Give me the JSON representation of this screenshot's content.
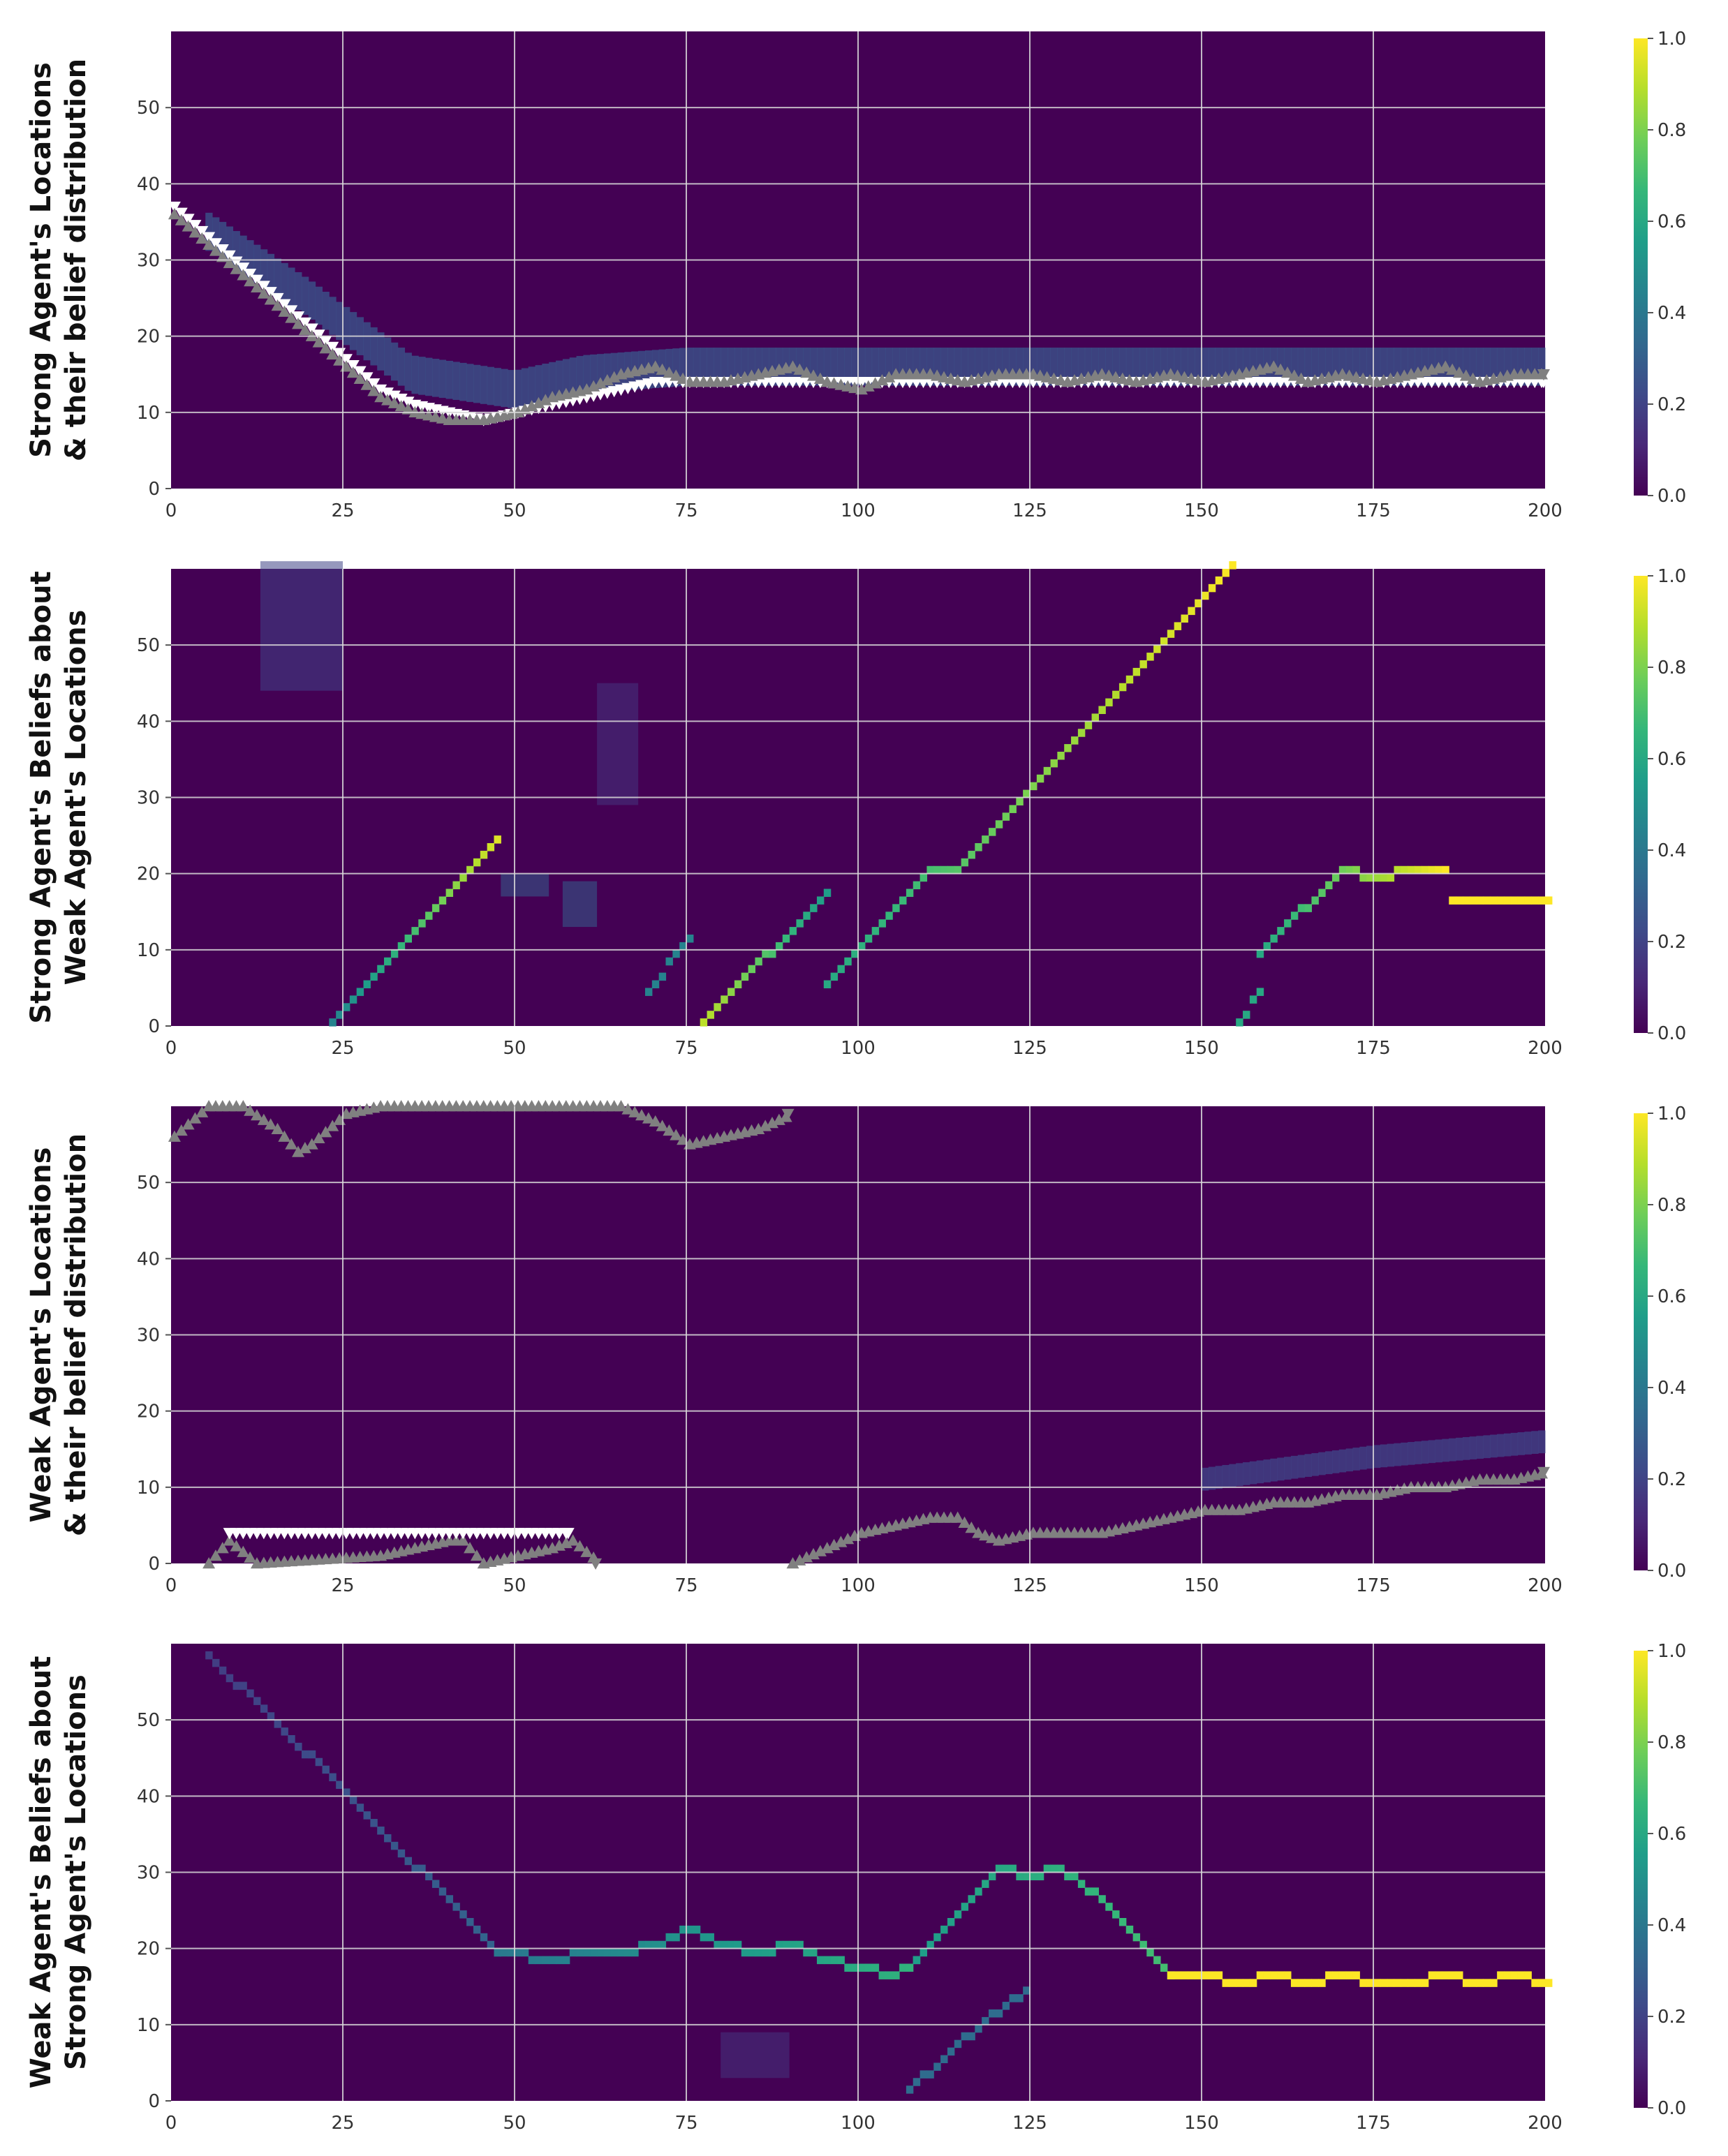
{
  "colormap": {
    "name": "viridis",
    "stops": [
      "#440154",
      "#482878",
      "#3e4a89",
      "#31688e",
      "#26828e",
      "#1f9e89",
      "#35b779",
      "#6ece58",
      "#b5de2b",
      "#fde725"
    ]
  },
  "marker_colors": {
    "strong": "#ffffff",
    "weak": "#808080"
  },
  "chart_data": [
    {
      "type": "heatmap",
      "ylabel_lines": [
        "Strong Agent's Locations",
        "& their belief distribution"
      ],
      "xlim": [
        0,
        200
      ],
      "ylim": [
        0,
        60
      ],
      "xticks": [
        "0",
        "25",
        "50",
        "75",
        "100",
        "125",
        "150",
        "175",
        "200"
      ],
      "yticks": [
        "0",
        "10",
        "20",
        "30",
        "40",
        "50"
      ],
      "colorbar": {
        "range": [
          0,
          1
        ],
        "ticks": [
          "0.0",
          "0.2",
          "0.4",
          "0.6",
          "0.8",
          "1.0"
        ]
      },
      "grid": true,
      "belief_band": {
        "t": [
          5,
          20,
          35,
          50,
          60,
          75,
          100,
          125,
          150,
          175,
          200
        ],
        "y": [
          34,
          25,
          15,
          13,
          15,
          16,
          16,
          16,
          16,
          16,
          16
        ],
        "width": 5,
        "intensity": 0.25
      },
      "series": [
        {
          "role": "strong",
          "marker": "triangle-down",
          "t": [
            0,
            5,
            10,
            15,
            20,
            25,
            30,
            35,
            40,
            45,
            50,
            55,
            60,
            65,
            70,
            75,
            80,
            85,
            90,
            95,
            100,
            105,
            110,
            115,
            120,
            125,
            130,
            135,
            140,
            145,
            150,
            155,
            160,
            165,
            170,
            175,
            180,
            185,
            190,
            195,
            200
          ],
          "y": [
            37,
            33,
            29,
            25,
            21,
            17,
            13,
            11,
            10,
            9,
            10,
            11,
            12,
            13,
            14,
            14,
            14,
            14,
            14,
            14,
            14,
            14,
            14,
            14,
            14,
            14,
            14,
            14,
            14,
            14,
            14,
            14,
            14,
            14,
            14,
            14,
            14,
            14,
            14,
            14,
            14
          ]
        },
        {
          "role": "weak",
          "marker": "triangle-up",
          "t": [
            0,
            5,
            10,
            15,
            20,
            25,
            30,
            35,
            40,
            45,
            50,
            55,
            60,
            65,
            70,
            75,
            80,
            85,
            90,
            95,
            100,
            105,
            110,
            115,
            120,
            125,
            130,
            135,
            140,
            145,
            150,
            155,
            160,
            165,
            170,
            175,
            180,
            185,
            190,
            195,
            200
          ],
          "y": [
            36,
            32,
            28,
            24,
            20,
            16,
            12,
            10,
            9,
            9,
            10,
            12,
            13,
            15,
            16,
            14,
            14,
            15,
            16,
            14,
            13,
            15,
            15,
            14,
            15,
            15,
            14,
            15,
            14,
            15,
            14,
            15,
            16,
            14,
            15,
            14,
            15,
            16,
            14,
            15,
            15
          ]
        }
      ]
    },
    {
      "type": "heatmap",
      "ylabel_lines": [
        "Strong Agent's Beliefs about",
        "Weak Agent's Locations"
      ],
      "xlim": [
        0,
        200
      ],
      "ylim": [
        0,
        60
      ],
      "xticks": [
        "0",
        "25",
        "50",
        "75",
        "100",
        "125",
        "150",
        "175",
        "200"
      ],
      "yticks": [
        "0",
        "10",
        "20",
        "30",
        "40",
        "50"
      ],
      "colorbar": {
        "range": [
          0,
          1
        ],
        "ticks": [
          "0.0",
          "0.2",
          "0.4",
          "0.6",
          "0.8",
          "1.0"
        ]
      },
      "grid": true,
      "belief_segments": [
        {
          "points": [
            [
              23,
              0
            ],
            [
              47,
              24
            ]
          ],
          "intensity": [
            0.45,
            0.95
          ]
        },
        {
          "points": [
            [
              69,
              4
            ],
            [
              75,
              11
            ]
          ],
          "intensity": [
            0.45,
            0.45
          ]
        },
        {
          "points": [
            [
              77,
              0
            ],
            [
              95,
              17
            ]
          ],
          "intensity": [
            0.9,
            0.55
          ]
        },
        {
          "points": [
            [
              95,
              5
            ],
            [
              110,
              20
            ],
            [
              114,
              20
            ],
            [
              154,
              60
            ]
          ],
          "intensity": [
            0.6,
            1.0
          ]
        },
        {
          "points": [
            [
              155,
              0
            ],
            [
              158,
              4
            ]
          ],
          "intensity": [
            0.6,
            0.6
          ]
        },
        {
          "points": [
            [
              158,
              9
            ],
            [
              170,
              20
            ],
            [
              175,
              19
            ],
            [
              180,
              20
            ],
            [
              185,
              20
            ]
          ],
          "intensity": [
            0.6,
            1.0
          ]
        },
        {
          "points": [
            [
              186,
              16
            ],
            [
              200,
              16
            ]
          ],
          "intensity": [
            1.0,
            1.0
          ]
        }
      ],
      "faint_regions": [
        {
          "points": [
            [
              13,
              45
            ],
            [
              25,
              60
            ]
          ],
          "intensity": 0.2
        },
        {
          "points": [
            [
              48,
              18
            ],
            [
              55,
              19
            ]
          ],
          "intensity": 0.3
        },
        {
          "points": [
            [
              57,
              14
            ],
            [
              62,
              18
            ]
          ],
          "intensity": 0.3
        },
        {
          "points": [
            [
              62,
              30
            ],
            [
              68,
              44
            ]
          ],
          "intensity": 0.15
        }
      ]
    },
    {
      "type": "heatmap",
      "ylabel_lines": [
        "Weak Agent's Locations",
        "& their belief distribution"
      ],
      "xlim": [
        0,
        200
      ],
      "ylim": [
        0,
        60
      ],
      "xticks": [
        "0",
        "25",
        "50",
        "75",
        "100",
        "125",
        "150",
        "175",
        "200"
      ],
      "yticks": [
        "0",
        "10",
        "20",
        "30",
        "40",
        "50"
      ],
      "colorbar": {
        "range": [
          0,
          1
        ],
        "ticks": [
          "0.0",
          "0.2",
          "0.4",
          "0.6",
          "0.8",
          "1.0"
        ]
      },
      "grid": true,
      "belief_band": {
        "t": [
          150,
          175,
          200
        ],
        "y": [
          11,
          14,
          16
        ],
        "width": 3,
        "intensity": 0.2
      },
      "series": [
        {
          "role": "weak",
          "marker": "triangle-up",
          "t": [
            0,
            5,
            10,
            15,
            18,
            20,
            25,
            30,
            35,
            40,
            45,
            50,
            55,
            60,
            65,
            70,
            75,
            80,
            85,
            90
          ],
          "y": [
            56,
            60,
            60,
            57,
            54,
            55,
            59,
            60,
            60,
            60,
            60,
            60,
            60,
            60,
            60,
            58,
            55,
            56,
            57,
            59
          ]
        },
        {
          "role": "weak",
          "marker": "triangle-up",
          "t": [
            5,
            8,
            12,
            30,
            35,
            40,
            42,
            45,
            50,
            55,
            58,
            62
          ],
          "y": [
            0,
            3,
            0,
            1,
            2,
            3,
            3,
            0,
            1,
            2,
            3,
            0
          ]
        },
        {
          "role": "weak",
          "marker": "triangle-up",
          "t": [
            90,
            95,
            100,
            105,
            110,
            114,
            117,
            120,
            125,
            130,
            135,
            140,
            145,
            150,
            155,
            160,
            165,
            170,
            175,
            180,
            185,
            190,
            195,
            200
          ],
          "y": [
            0,
            2,
            4,
            5,
            6,
            6,
            4,
            3,
            4,
            4,
            4,
            5,
            6,
            7,
            7,
            8,
            8,
            9,
            9,
            10,
            10,
            11,
            11,
            12
          ]
        },
        {
          "role": "strong",
          "marker": "triangle-down",
          "t": [
            8,
            58
          ],
          "y": [
            4,
            4
          ]
        }
      ]
    },
    {
      "type": "heatmap",
      "ylabel_lines": [
        "Weak Agent's Beliefs about",
        "Strong Agent's Locations"
      ],
      "xlim": [
        0,
        200
      ],
      "ylim": [
        0,
        60
      ],
      "xticks": [
        "0",
        "25",
        "50",
        "75",
        "100",
        "125",
        "150",
        "175",
        "200"
      ],
      "yticks": [
        "0",
        "10",
        "20",
        "30",
        "40",
        "50"
      ],
      "colorbar": {
        "range": [
          0,
          1
        ],
        "ticks": [
          "0.0",
          "0.2",
          "0.4",
          "0.6",
          "0.8",
          "1.0"
        ]
      },
      "grid": true,
      "belief_segments": [
        {
          "points": [
            [
              5,
              58
            ],
            [
              25,
              40
            ],
            [
              47,
              19
            ]
          ],
          "intensity": [
            0.18,
            0.32
          ]
        },
        {
          "points": [
            [
              47,
              19
            ],
            [
              55,
              18
            ],
            [
              60,
              19
            ],
            [
              65,
              19
            ],
            [
              70,
              20
            ],
            [
              75,
              22
            ],
            [
              80,
              20
            ],
            [
              85,
              19
            ],
            [
              90,
              20
            ],
            [
              95,
              18
            ],
            [
              100,
              17
            ],
            [
              105,
              16
            ],
            [
              108,
              18
            ]
          ],
          "intensity": [
            0.4,
            0.65
          ]
        },
        {
          "points": [
            [
              108,
              18
            ],
            [
              115,
              25
            ],
            [
              120,
              30
            ],
            [
              125,
              29
            ],
            [
              129,
              30
            ],
            [
              135,
              26
            ],
            [
              145,
              16
            ]
          ],
          "intensity": [
            0.55,
            0.7
          ]
        },
        {
          "points": [
            [
              145,
              16
            ],
            [
              150,
              16
            ],
            [
              155,
              15
            ],
            [
              160,
              16
            ],
            [
              165,
              15
            ],
            [
              170,
              16
            ],
            [
              175,
              15
            ],
            [
              180,
              15
            ],
            [
              185,
              16
            ],
            [
              190,
              15
            ],
            [
              195,
              16
            ],
            [
              200,
              15
            ]
          ],
          "intensity": [
            1.0,
            1.0
          ]
        },
        {
          "points": [
            [
              107,
              1
            ],
            [
              118,
              10
            ],
            [
              124,
              14
            ]
          ],
          "intensity": [
            0.35,
            0.35
          ]
        }
      ],
      "faint_regions": [
        {
          "points": [
            [
              80,
              8
            ],
            [
              90,
              4
            ]
          ],
          "intensity": 0.15
        }
      ]
    }
  ]
}
